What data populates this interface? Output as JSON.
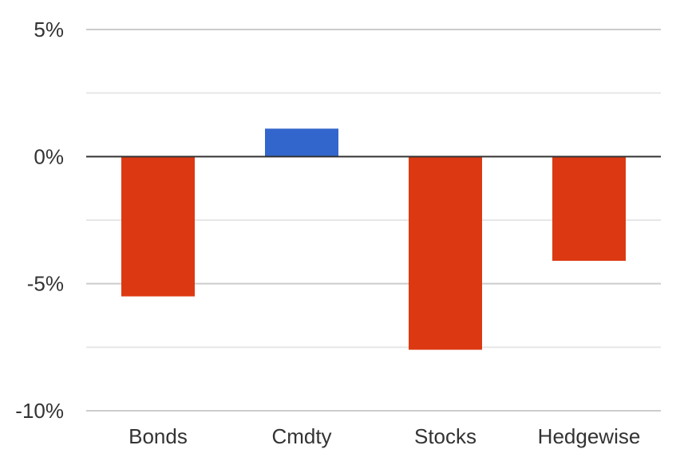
{
  "chart_data": {
    "type": "bar",
    "categories": [
      "Bonds",
      "Cmdty",
      "Stocks",
      "Hedgewise"
    ],
    "values": [
      -5.5,
      1.1,
      -7.6,
      -4.1
    ],
    "value_unit": "%",
    "ylim": [
      -10,
      5
    ],
    "y_ticks": [
      5,
      0,
      -5,
      -10
    ],
    "y_tick_labels": [
      "5%",
      "0%",
      "-5%",
      "-10%"
    ],
    "minor_gridlines": [
      2.5,
      -2.5,
      -7.5
    ],
    "grid": true,
    "legend": "none",
    "colors": {
      "positive": "#3366CC",
      "negative": "#DC3912",
      "grid_major": "#CCCCCC",
      "grid_minor": "#E6E6E6",
      "zero_line": "#333333",
      "text": "#333333"
    }
  }
}
